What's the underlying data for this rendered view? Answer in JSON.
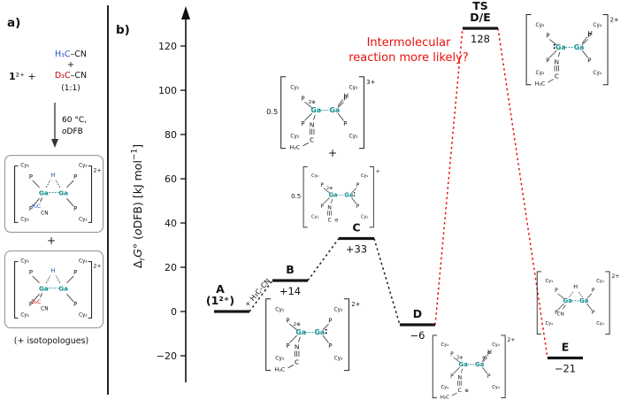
{
  "panel_a": {
    "label": "a)",
    "reactant_bold": "1",
    "reactant_rest": "²⁺ +",
    "nitrile1_c": "H₃C",
    "nitrile1_cn": "–CN",
    "plus": "+",
    "nitrile2_c": "D₃C",
    "nitrile2_cn": "–CN",
    "ratio": "(1:1)",
    "cond1": "60 °C,",
    "cond2_italic": "o",
    "cond2_rest": "DFB",
    "isotopologues": "(+ isotopologues)",
    "colors": {
      "blue": "#2457c5",
      "red": "#c00000"
    }
  },
  "products": {
    "box1": {
      "charge": "2+",
      "h": "H",
      "h_color": "#2457c5",
      "alkyl": "H₂C",
      "alkyl_color": "#2457c5",
      "cn": "CN"
    },
    "box2": {
      "charge": "2+",
      "h": "H",
      "h_color": "#2457c5",
      "alkyl": "D₂C",
      "alkyl_color": "#c00000",
      "cn": "CN"
    }
  },
  "panel_b": {
    "label": "b)",
    "mid_plus": "+",
    "ylabel_parts": {
      "delta": "Δ",
      "sub_r": "r",
      "g": "G",
      "deg_open": "° (",
      "o_italic": "o",
      "rest": "DFB) [kJ mol",
      "sup": "−1",
      "close": "]"
    }
  },
  "atoms": {
    "cy2": "Cy₂",
    "p": "P",
    "ga": "Ga"
  },
  "structures": {
    "s_ab": {
      "charge": "2+",
      "gaL_sup": "2⊕",
      "gaR_dots": true,
      "chain1": "N",
      "chain2": "C",
      "tail": "H₃C"
    },
    "s_mid_top": {
      "coeff": "0.5",
      "charge": "3+",
      "gaL_sup": "2⊕",
      "h": "H",
      "chain1": "N",
      "chain2": "C",
      "tail": "H₃C"
    },
    "s_mid_bot": {
      "coeff": "0.5",
      "charge": "+",
      "gaL_sup": "2⊕",
      "gaR_dots": true,
      "chain1": "N",
      "chain2": "C",
      "mark": "⊖"
    },
    "s_d": {
      "charge": "2+",
      "gaL_sup": "2⊕",
      "gaR_sup": "⊕",
      "h": "H",
      "chain1": "N",
      "chain2": "C",
      "tail": "H₂C",
      "mark": "⊕"
    },
    "s_ts": {
      "charge": "2+",
      "h": "H",
      "gaL_dots": true,
      "chain1": "N",
      "chain2": "C",
      "tail": "H₃C"
    },
    "s_e": {
      "charge": "2+",
      "bridge_h": "H",
      "cn": "CN"
    }
  },
  "chart_data": {
    "type": "line",
    "subtype": "reaction-energy-profile",
    "ylabel": "ΔrG° (oDFB) [kJ mol−1]",
    "ylim": [
      -30,
      140
    ],
    "yticks": [
      -20,
      0,
      20,
      40,
      60,
      80,
      100,
      120
    ],
    "grid": false,
    "levels": [
      {
        "labels": [
          "A",
          "(1²⁺)"
        ],
        "value": 0,
        "value_label": ""
      },
      {
        "labels": [
          "B"
        ],
        "value": 14,
        "value_label": "+14"
      },
      {
        "labels": [
          "C"
        ],
        "value": 33,
        "value_label": "+33"
      },
      {
        "labels": [
          "D"
        ],
        "value": -6,
        "value_label": "−6"
      },
      {
        "labels": [
          "TS",
          "D/E"
        ],
        "value": 128,
        "value_label": "128"
      },
      {
        "labels": [
          "E"
        ],
        "value": -21,
        "value_label": "−21"
      }
    ],
    "segments": [
      {
        "from": 0,
        "to": 1,
        "color": "#1a1a1a",
        "style": "dotted"
      },
      {
        "from": 1,
        "to": 2,
        "color": "#1a1a1a",
        "style": "dotted"
      },
      {
        "from": 2,
        "to": 3,
        "color": "#1a1a1a",
        "style": "dotted"
      },
      {
        "from": 3,
        "to": 4,
        "color": "#e8100c",
        "style": "dotted"
      },
      {
        "from": 4,
        "to": 5,
        "color": "#e8100c",
        "style": "dotted"
      }
    ],
    "segment_label": {
      "segment": 0,
      "text": "+ H₃C–CN"
    },
    "annotation": {
      "text_lines": [
        "Intermolecular",
        "reaction more likely?"
      ],
      "color": "#e8100c"
    }
  }
}
